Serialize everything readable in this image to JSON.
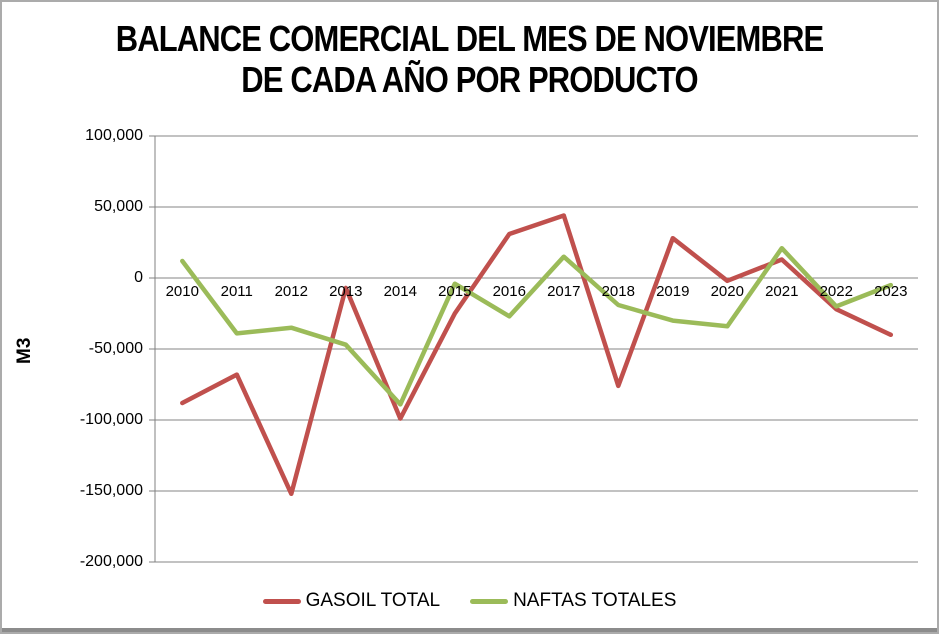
{
  "window": {
    "frame_border_color": "#ababab",
    "bottom_strip_color": "#8c8c8c"
  },
  "chart_data": {
    "type": "line",
    "title": "BALANCE COMERCIAL DEL MES DE NOVIEMBRE DE CADA AÑO POR PRODUCTO",
    "title_lines": [
      "BALANCE COMERCIAL DEL MES DE NOVIEMBRE",
      "DE CADA AÑO POR PRODUCTO"
    ],
    "xlabel": "",
    "ylabel": "M3",
    "categories": [
      "2010",
      "2011",
      "2012",
      "2013",
      "2014",
      "2015",
      "2016",
      "2017",
      "2018",
      "2019",
      "2020",
      "2021",
      "2022",
      "2023"
    ],
    "series": [
      {
        "name": "GASOIL TOTAL",
        "color": "#C0504D",
        "values": [
          -88000,
          -68000,
          -152000,
          -7000,
          -99000,
          -25000,
          31000,
          44000,
          -76000,
          28000,
          -2000,
          13000,
          -22000,
          -40000
        ]
      },
      {
        "name": "NAFTAS TOTALES",
        "color": "#9BBB59",
        "values": [
          12000,
          -39000,
          -35000,
          -47000,
          -89000,
          -4000,
          -27000,
          15000,
          -19000,
          -30000,
          -34000,
          21000,
          -20000,
          -5000
        ]
      }
    ],
    "ylim": [
      -200000,
      100000
    ],
    "ytick_step": 50000,
    "ytick_labels": [
      "100,000",
      "50,000",
      "0",
      "-50,000",
      "-100,000",
      "-150,000",
      "-200,000"
    ],
    "grid": true,
    "gridline_color": "#848484",
    "axis_color": "#808080",
    "legend_position": "bottom",
    "x_labels_at_value": 0
  }
}
